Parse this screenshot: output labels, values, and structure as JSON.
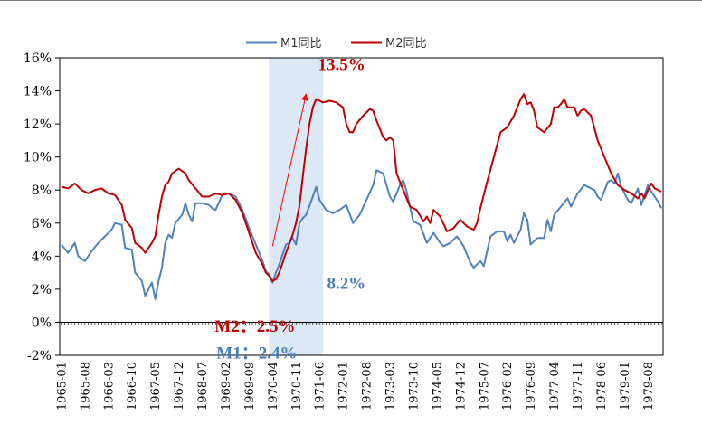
{
  "chart_data": {
    "type": "line",
    "ylim": [
      -2,
      16
    ],
    "yticks": [
      "-2%",
      "0%",
      "2%",
      "4%",
      "6%",
      "8%",
      "10%",
      "12%",
      "14%",
      "16%"
    ],
    "ytick_values": [
      -2,
      0,
      2,
      4,
      6,
      8,
      10,
      12,
      14,
      16
    ],
    "xticks": [
      "1965-01",
      "1965-08",
      "1966-03",
      "1966-10",
      "1967-05",
      "1967-12",
      "1968-07",
      "1969-02",
      "1969-09",
      "1970-04",
      "1970-11",
      "1971-06",
      "1972-01",
      "1972-08",
      "1973-03",
      "1973-10",
      "1974-05",
      "1974-12",
      "1975-07",
      "1976-02",
      "1976-09",
      "1977-04",
      "1977-11",
      "1978-06",
      "1979-01",
      "1979-08"
    ],
    "x_start": "1965-01",
    "x_end": "1979-12",
    "legend_position": "top",
    "grid": false,
    "series": [
      {
        "name": "M1同比",
        "color": "#4f81bd",
        "points": [
          [
            "1965-01",
            4.7
          ],
          [
            "1965-03",
            4.2
          ],
          [
            "1965-05",
            4.8
          ],
          [
            "1965-06",
            4.0
          ],
          [
            "1965-08",
            3.7
          ],
          [
            "1965-10",
            4.3
          ],
          [
            "1965-12",
            4.8
          ],
          [
            "1966-02",
            5.2
          ],
          [
            "1966-04",
            5.6
          ],
          [
            "1966-05",
            6.0
          ],
          [
            "1966-07",
            5.9
          ],
          [
            "1966-08",
            4.5
          ],
          [
            "1966-10",
            4.4
          ],
          [
            "1966-11",
            3.0
          ],
          [
            "1967-01",
            2.5
          ],
          [
            "1967-02",
            1.6
          ],
          [
            "1967-04",
            2.4
          ],
          [
            "1967-05",
            1.4
          ],
          [
            "1967-06",
            2.5
          ],
          [
            "1967-07",
            3.3
          ],
          [
            "1967-08",
            4.8
          ],
          [
            "1967-09",
            5.3
          ],
          [
            "1967-10",
            5.1
          ],
          [
            "1967-11",
            6.0
          ],
          [
            "1968-01",
            6.5
          ],
          [
            "1968-02",
            7.2
          ],
          [
            "1968-03",
            6.5
          ],
          [
            "1968-04",
            6.1
          ],
          [
            "1968-05",
            7.2
          ],
          [
            "1968-07",
            7.2
          ],
          [
            "1968-09",
            7.1
          ],
          [
            "1968-10",
            6.9
          ],
          [
            "1968-11",
            6.8
          ],
          [
            "1969-01",
            7.7
          ],
          [
            "1969-03",
            7.8
          ],
          [
            "1969-05",
            7.6
          ],
          [
            "1969-07",
            6.8
          ],
          [
            "1969-09",
            5.7
          ],
          [
            "1969-11",
            4.7
          ],
          [
            "1970-01",
            3.7
          ],
          [
            "1970-02",
            3.1
          ],
          [
            "1970-03",
            2.9
          ],
          [
            "1970-04",
            2.4
          ],
          [
            "1970-05",
            3.0
          ],
          [
            "1970-06",
            3.5
          ],
          [
            "1970-08",
            4.7
          ],
          [
            "1970-09",
            4.8
          ],
          [
            "1970-10",
            5.1
          ],
          [
            "1970-11",
            4.7
          ],
          [
            "1970-12",
            6.0
          ],
          [
            "1971-01",
            6.3
          ],
          [
            "1971-02",
            6.5
          ],
          [
            "1971-04",
            7.6
          ],
          [
            "1971-05",
            8.2
          ],
          [
            "1971-06",
            7.4
          ],
          [
            "1971-08",
            6.8
          ],
          [
            "1971-10",
            6.6
          ],
          [
            "1971-12",
            6.8
          ],
          [
            "1972-02",
            7.1
          ],
          [
            "1972-04",
            6.0
          ],
          [
            "1972-06",
            6.5
          ],
          [
            "1972-08",
            7.4
          ],
          [
            "1972-10",
            8.3
          ],
          [
            "1972-11",
            9.2
          ],
          [
            "1973-01",
            9.0
          ],
          [
            "1973-03",
            7.6
          ],
          [
            "1973-04",
            7.3
          ],
          [
            "1973-06",
            8.3
          ],
          [
            "1973-07",
            8.6
          ],
          [
            "1973-08",
            7.9
          ],
          [
            "1973-10",
            6.1
          ],
          [
            "1973-12",
            5.9
          ],
          [
            "1974-02",
            4.8
          ],
          [
            "1974-04",
            5.4
          ],
          [
            "1974-06",
            4.8
          ],
          [
            "1974-07",
            4.6
          ],
          [
            "1974-09",
            4.8
          ],
          [
            "1974-11",
            5.2
          ],
          [
            "1975-01",
            4.6
          ],
          [
            "1975-03",
            3.6
          ],
          [
            "1975-04",
            3.3
          ],
          [
            "1975-06",
            3.7
          ],
          [
            "1975-07",
            3.4
          ],
          [
            "1975-09",
            5.2
          ],
          [
            "1975-11",
            5.5
          ],
          [
            "1976-01",
            5.5
          ],
          [
            "1976-02",
            4.9
          ],
          [
            "1976-03",
            5.3
          ],
          [
            "1976-04",
            4.8
          ],
          [
            "1976-06",
            5.6
          ],
          [
            "1976-07",
            6.6
          ],
          [
            "1976-08",
            6.2
          ],
          [
            "1976-09",
            4.7
          ],
          [
            "1976-11",
            5.1
          ],
          [
            "1977-01",
            5.1
          ],
          [
            "1977-02",
            6.2
          ],
          [
            "1977-03",
            5.5
          ],
          [
            "1977-04",
            6.5
          ],
          [
            "1977-06",
            7.0
          ],
          [
            "1977-08",
            7.5
          ],
          [
            "1977-09",
            7.0
          ],
          [
            "1977-11",
            7.8
          ],
          [
            "1978-01",
            8.3
          ],
          [
            "1978-02",
            8.2
          ],
          [
            "1978-04",
            8.0
          ],
          [
            "1978-05",
            7.6
          ],
          [
            "1978-06",
            7.4
          ],
          [
            "1978-08",
            8.5
          ],
          [
            "1978-09",
            8.6
          ],
          [
            "1978-10",
            8.4
          ],
          [
            "1978-11",
            9.0
          ],
          [
            "1978-12",
            8.2
          ],
          [
            "1979-02",
            7.4
          ],
          [
            "1979-03",
            7.2
          ],
          [
            "1979-05",
            8.1
          ],
          [
            "1979-06",
            7.1
          ],
          [
            "1979-08",
            8.3
          ],
          [
            "1979-09",
            7.9
          ],
          [
            "1979-11",
            7.3
          ],
          [
            "1979-12",
            6.9
          ]
        ]
      },
      {
        "name": "M2同比",
        "color": "#c00000",
        "points": [
          [
            "1965-01",
            8.2
          ],
          [
            "1965-03",
            8.1
          ],
          [
            "1965-05",
            8.4
          ],
          [
            "1965-07",
            8.0
          ],
          [
            "1965-09",
            7.8
          ],
          [
            "1965-11",
            8.0
          ],
          [
            "1966-01",
            8.1
          ],
          [
            "1966-03",
            7.8
          ],
          [
            "1966-05",
            7.7
          ],
          [
            "1966-07",
            7.1
          ],
          [
            "1966-08",
            6.2
          ],
          [
            "1966-10",
            5.7
          ],
          [
            "1966-11",
            4.8
          ],
          [
            "1967-01",
            4.5
          ],
          [
            "1967-02",
            4.2
          ],
          [
            "1967-04",
            4.8
          ],
          [
            "1967-05",
            5.2
          ],
          [
            "1967-06",
            6.5
          ],
          [
            "1967-07",
            7.6
          ],
          [
            "1967-08",
            8.3
          ],
          [
            "1967-09",
            8.5
          ],
          [
            "1967-10",
            9.0
          ],
          [
            "1967-12",
            9.3
          ],
          [
            "1968-02",
            9.0
          ],
          [
            "1968-03",
            8.6
          ],
          [
            "1968-05",
            8.1
          ],
          [
            "1968-07",
            7.6
          ],
          [
            "1968-09",
            7.6
          ],
          [
            "1968-11",
            7.8
          ],
          [
            "1969-01",
            7.7
          ],
          [
            "1969-03",
            7.8
          ],
          [
            "1969-05",
            7.4
          ],
          [
            "1969-07",
            6.6
          ],
          [
            "1969-09",
            5.4
          ],
          [
            "1969-11",
            4.2
          ],
          [
            "1970-01",
            3.5
          ],
          [
            "1970-02",
            3.0
          ],
          [
            "1970-03",
            2.8
          ],
          [
            "1970-04",
            2.5
          ],
          [
            "1970-05",
            2.6
          ],
          [
            "1970-06",
            3.0
          ],
          [
            "1970-08",
            4.2
          ],
          [
            "1970-10",
            5.3
          ],
          [
            "1970-11",
            6.0
          ],
          [
            "1970-12",
            7.0
          ],
          [
            "1971-01",
            8.8
          ],
          [
            "1971-02",
            10.5
          ],
          [
            "1971-03",
            12.0
          ],
          [
            "1971-04",
            13.0
          ],
          [
            "1971-05",
            13.5
          ],
          [
            "1971-06",
            13.4
          ],
          [
            "1971-07",
            13.3
          ],
          [
            "1971-09",
            13.4
          ],
          [
            "1971-11",
            13.3
          ],
          [
            "1972-01",
            13.0
          ],
          [
            "1972-02",
            12.0
          ],
          [
            "1972-03",
            11.5
          ],
          [
            "1972-04",
            11.5
          ],
          [
            "1972-05",
            12.0
          ],
          [
            "1972-07",
            12.5
          ],
          [
            "1972-09",
            12.9
          ],
          [
            "1972-10",
            12.8
          ],
          [
            "1972-11",
            12.2
          ],
          [
            "1973-01",
            11.2
          ],
          [
            "1973-02",
            11.0
          ],
          [
            "1973-03",
            11.2
          ],
          [
            "1973-04",
            11.0
          ],
          [
            "1973-05",
            9.0
          ],
          [
            "1973-07",
            8.0
          ],
          [
            "1973-09",
            7.0
          ],
          [
            "1973-11",
            6.8
          ],
          [
            "1974-01",
            6.1
          ],
          [
            "1974-02",
            6.4
          ],
          [
            "1974-03",
            6.0
          ],
          [
            "1974-04",
            6.8
          ],
          [
            "1974-06",
            6.4
          ],
          [
            "1974-08",
            5.5
          ],
          [
            "1974-10",
            5.7
          ],
          [
            "1974-12",
            6.2
          ],
          [
            "1975-02",
            5.8
          ],
          [
            "1975-04",
            5.6
          ],
          [
            "1975-05",
            6.0
          ],
          [
            "1975-06",
            6.9
          ],
          [
            "1975-08",
            8.5
          ],
          [
            "1975-10",
            10.0
          ],
          [
            "1975-12",
            11.5
          ],
          [
            "1976-02",
            11.8
          ],
          [
            "1976-04",
            12.5
          ],
          [
            "1976-06",
            13.5
          ],
          [
            "1976-07",
            13.8
          ],
          [
            "1976-08",
            13.2
          ],
          [
            "1976-09",
            13.3
          ],
          [
            "1976-10",
            12.8
          ],
          [
            "1976-11",
            11.8
          ],
          [
            "1977-01",
            11.5
          ],
          [
            "1977-03",
            12.0
          ],
          [
            "1977-04",
            13.0
          ],
          [
            "1977-05",
            13.0
          ],
          [
            "1977-06",
            13.2
          ],
          [
            "1977-07",
            13.5
          ],
          [
            "1977-08",
            13.0
          ],
          [
            "1977-10",
            13.0
          ],
          [
            "1977-11",
            12.5
          ],
          [
            "1977-12",
            12.8
          ],
          [
            "1978-01",
            12.9
          ],
          [
            "1978-03",
            12.5
          ],
          [
            "1978-05",
            11.0
          ],
          [
            "1978-07",
            10.0
          ],
          [
            "1978-09",
            9.0
          ],
          [
            "1978-11",
            8.3
          ],
          [
            "1979-01",
            8.0
          ],
          [
            "1979-03",
            7.8
          ],
          [
            "1979-05",
            7.5
          ],
          [
            "1979-06",
            7.8
          ],
          [
            "1979-07",
            7.5
          ],
          [
            "1979-08",
            8.0
          ],
          [
            "1979-09",
            8.4
          ],
          [
            "1979-10",
            8.1
          ],
          [
            "1979-12",
            7.9
          ]
        ]
      }
    ],
    "highlight": {
      "from": "1970-04",
      "to": "1971-06",
      "color": "#c6d9f1"
    },
    "annotations": [
      {
        "text": "13.5%",
        "series": "M2同比",
        "at": "1971-05",
        "value": 13.5,
        "color": "#c00000"
      },
      {
        "text": "M2：2.5%",
        "series": "M2同比",
        "at": "1970-04",
        "value": 2.5,
        "color": "#c00000"
      },
      {
        "text": "M1：2.4%",
        "series": "M1同比",
        "at": "1970-04",
        "value": 2.4,
        "color": "#4a7ebb"
      },
      {
        "text": "8.2%",
        "series": "M1同比",
        "at": "1971-05",
        "value": 8.2,
        "color": "#4a7ebb"
      }
    ],
    "arrow": {
      "from": [
        "1970-04",
        4.6
      ],
      "to": [
        "1971-02",
        13.8
      ],
      "color": "#ff0000"
    }
  }
}
